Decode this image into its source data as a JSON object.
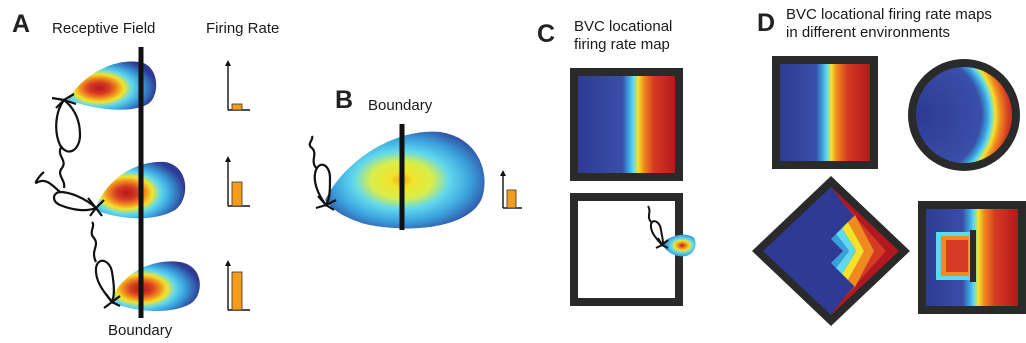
{
  "panel_a": {
    "letter": "A",
    "receptive_field_label": "Receptive Field",
    "firing_rate_label": "Firing Rate",
    "boundary_label": "Boundary",
    "bar_levels": [
      0.12,
      0.55,
      0.9
    ]
  },
  "panel_b": {
    "letter": "B",
    "boundary_label": "Boundary",
    "bar_level": 0.5
  },
  "panel_c": {
    "letter": "C",
    "title_line1": "BVC locational",
    "title_line2": "firing rate map"
  },
  "panel_d": {
    "letter": "D",
    "title_line1": "BVC locational firing rate maps",
    "title_line2": "in different environments"
  },
  "colors": {
    "heat_low": "#2e3a93",
    "heat_mid_blue": "#3aa0dc",
    "heat_cyan": "#60d8ee",
    "heat_yellow": "#f2e32a",
    "heat_orange": "#f08a1f",
    "heat_red": "#cc2222",
    "bar": "#f39c1e",
    "frame": "#2a2a2a"
  }
}
